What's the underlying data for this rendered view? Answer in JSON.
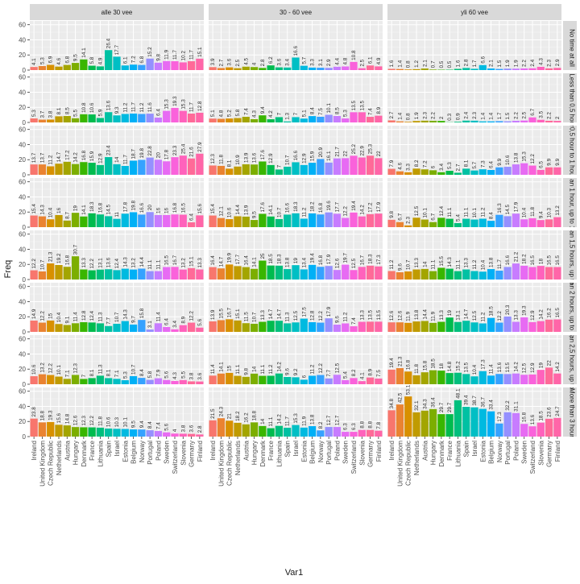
{
  "chart_data": {
    "type": "bar",
    "xlabel": "Var1",
    "ylabel": "Freq",
    "ylim": [
      0,
      65
    ],
    "yticks": [
      0,
      20,
      40,
      60
    ],
    "ytick_labels": [
      "0",
      "20",
      "40",
      "60"
    ],
    "grid": true,
    "legend": "none",
    "facet_cols": [
      "alle 30 vee",
      "30 - 60 vee",
      "yli 60 vee"
    ],
    "facet_rows": [
      "No time at all",
      "Less than 0,5 hour",
      "0,5 hour to 1 hour",
      "an 1 hour, up to 1,",
      "an 1,5 hours, up to",
      "an 2 hours, up to 2,",
      "an 2,5 hours, up to",
      "More than 3 hours"
    ],
    "categories": [
      "Ireland",
      "United Kingdom",
      "Czech Republic",
      "Netherlands",
      "Austria",
      "Hungary",
      "Denmark",
      "France",
      "Lithuania",
      "Spain",
      "Israel",
      "Estonia",
      "Belgium",
      "Norway",
      "Portugal",
      "Poland",
      "Sweden",
      "Switzerland",
      "Slovenia",
      "Germany",
      "Finland"
    ],
    "colors": [
      "#F8766D",
      "#EA8331",
      "#D89000",
      "#C09B00",
      "#A3A500",
      "#7CAE00",
      "#39B600",
      "#00BB4E",
      "#00BF7D",
      "#00C1A3",
      "#00BFC4",
      "#00BAE0",
      "#00B0F6",
      "#35A2FF",
      "#9590FF",
      "#C77CFF",
      "#E76BF3",
      "#FA62DB",
      "#FF62BC",
      "#FF6A98",
      "#FF66A8"
    ],
    "values": [
      [
        [
          4.1,
          5.3,
          6.9,
          4.6,
          6.8,
          9.5,
          14.1,
          5.8,
          4.9,
          26.4,
          17.7,
          6.1,
          7.2,
          6.8,
          15.2,
          9.8,
          11.9,
          11.7,
          10.2,
          11.7,
          15.1
        ],
        [
          3.9,
          2.7,
          3.6,
          2.5,
          4.5,
          4,
          2.8,
          6.2,
          3.6,
          3.4,
          16.6,
          5.7,
          3.3,
          3.1,
          2.9,
          4.4,
          4.8,
          10.8,
          2.5,
          6.1,
          4.9
        ],
        [
          1.6,
          1.4,
          0.8,
          1.2,
          2.1,
          0.7,
          0.5,
          0.5,
          1.6,
          2.8,
          1.7,
          6.6,
          2.1,
          1.5,
          1.9,
          1.9,
          2.2,
          2.4,
          4.3,
          2.3,
          2.9
        ]
      ],
      [
        [
          5.3,
          3.7,
          3.8,
          8.1,
          8.5,
          5.5,
          10.8,
          10.6,
          5.9,
          13.6,
          9.3,
          11.2,
          11.7,
          11.2,
          11.6,
          6.4,
          15.3,
          19.3,
          15.3,
          11.7,
          12.8
        ],
        [
          5.1,
          4.8,
          5.2,
          5.8,
          7.4,
          4.3,
          9.4,
          4.2,
          7,
          1.3,
          7,
          5.1,
          8.4,
          7.5,
          10.1,
          8.5,
          5.3,
          13.5,
          13.5,
          7.4,
          8.9
        ],
        [
          2.7,
          1.4,
          0.8,
          1.9,
          2.3,
          2.2,
          2,
          0.3,
          0.9,
          2.4,
          2.3,
          1.4,
          1.4,
          1.7,
          1.5,
          2.2,
          2.5,
          6.7,
          3.5,
          2.2,
          2
        ]
      ],
      [
        [
          13.7,
          13.7,
          11.2,
          14.7,
          17.2,
          14.2,
          16.8,
          15.9,
          12.9,
          23.4,
          14,
          11.7,
          18.7,
          19.8,
          22.8,
          20,
          17.8,
          23.3,
          25.4,
          21.6,
          27.9
        ],
        [
          12.3,
          11.8,
          8.1,
          10.9,
          13.9,
          13.6,
          17.6,
          12.9,
          7,
          10.7,
          16.6,
          12.9,
          15.9,
          20.9,
          16.1,
          21.7,
          22,
          25.2,
          22.9,
          25.3,
          22
        ],
        [
          7.9,
          4.6,
          3.3,
          8.2,
          7.2,
          6,
          3.4,
          5.3,
          2.7,
          8.1,
          5.7,
          7.3,
          6.4,
          9.9,
          10.6,
          13.8,
          15.3,
          12.2,
          6.5,
          9.9,
          9.9
        ]
      ],
      [
        [
          15.4,
          14.3,
          10.4,
          16,
          8.7,
          19,
          14.1,
          18.3,
          16.8,
          14.5,
          11,
          17.8,
          19.8,
          16.6,
          20,
          16,
          16,
          16.8,
          16.5,
          6.4,
          15.6
        ],
        [
          15.4,
          12.1,
          10.6,
          14.4,
          13.9,
          9.5,
          17.6,
          14.1,
          10.7,
          16.6,
          18.3,
          11.2,
          18.2,
          16.8,
          19.6,
          17.7,
          12.2,
          19.4,
          14.2,
          17.2,
          17.9
        ],
        [
          9.8,
          6.7,
          2.3,
          12.5,
          10.1,
          6.7,
          12.4,
          11.1,
          5.4,
          11.1,
          10.1,
          11.2,
          8.4,
          16.3,
          14.5,
          17.9,
          10.4,
          11.8,
          9.4,
          10.3,
          13.2
        ]
      ],
      [
        [
          12.2,
          10.7,
          21.3,
          19.2,
          16.8,
          30.7,
          13.3,
          12.2,
          13.1,
          13.6,
          12.4,
          14.3,
          13.2,
          14.4,
          11.1,
          11.1,
          16.5,
          16.7,
          13.2,
          15.1,
          13.3
        ],
        [
          16.4,
          14.7,
          19.9,
          17.7,
          16.4,
          14.1,
          25,
          18.5,
          18.3,
          13.8,
          19,
          13.4,
          19.4,
          16.8,
          17.9,
          12.6,
          19.7,
          12.5,
          16.7,
          18.3,
          17.3
        ],
        [
          11.2,
          9.6,
          10.7,
          13.3,
          14,
          11.1,
          15.5,
          14.3,
          11.1,
          13.3,
          11.2,
          10.4,
          13.8,
          11.7,
          16.6,
          21.2,
          18.2,
          16.5,
          18,
          16.5,
          16.5
        ]
      ],
      [
        [
          14.9,
          12.2,
          15,
          10.4,
          9.1,
          11.4,
          12.8,
          12.4,
          11.3,
          7.7,
          10.7,
          14.3,
          9.7,
          15.8,
          3.1,
          11.4,
          6.4,
          3.4,
          8.9,
          12.2,
          5.6
        ],
        [
          13.9,
          15.5,
          16.7,
          15.1,
          11.5,
          10.7,
          13.3,
          14.7,
          14.7,
          11.3,
          12.5,
          17.5,
          12.8,
          12.2,
          17.9,
          9.6,
          11.2,
          7.4,
          13.3,
          13.5,
          13.5
        ],
        [
          12.6,
          12.6,
          11.9,
          13.8,
          14.4,
          11.9,
          13.3,
          19,
          13.1,
          14.7,
          12.5,
          11.2,
          18.5,
          12.2,
          20.3,
          13.3,
          19.3,
          12.9,
          14.2,
          16.2,
          16.5
        ]
      ],
      [
        [
          10.6,
          13.2,
          12.2,
          10.1,
          7.1,
          12.3,
          7,
          8.1,
          11.3,
          8.1,
          7.1,
          5.3,
          10.7,
          8.4,
          5.8,
          7.9,
          5.6,
          4.3,
          5.5,
          3.8,
          3.6
        ],
        [
          11.4,
          14.1,
          15,
          11.1,
          9.8,
          14,
          11.1,
          11.2,
          14.2,
          9.6,
          9.2,
          6,
          11.2,
          12.2,
          7.7,
          12.5,
          5.4,
          8.2,
          4.1,
          8.9,
          7.5
        ],
        [
          19.4,
          21.3,
          16.8,
          11.8,
          15.8,
          18.5,
          18,
          14.8,
          15.2,
          13.5,
          10.4,
          17.3,
          11.4,
          13.6,
          13.5,
          14.2,
          12.5,
          12.9,
          19,
          22,
          14.2
        ]
      ],
      [
        [
          23.8,
          18.8,
          19.3,
          15.6,
          14.8,
          12.6,
          12.3,
          12.2,
          11.8,
          10.6,
          10.3,
          10.1,
          9.5,
          9.4,
          8.4,
          7.4,
          5.6,
          4,
          3.8,
          3.6,
          2.8
        ],
        [
          21.5,
          24.3,
          21,
          18.2,
          16.2,
          18.8,
          14,
          11.1,
          14.2,
          11.7,
          15.3,
          11.9,
          13.8,
          8.2,
          12.7,
          12.7,
          6.3,
          6.3,
          8.8,
          8.8,
          7.8
        ],
        [
          34.8,
          42.5,
          53.1,
          32.1,
          34.3,
          36.4,
          29.7,
          29.7,
          48.1,
          39.4,
          38.7,
          36.7,
          33.4,
          17.3,
          32.2,
          31.1,
          16.8,
          13.6,
          18.5,
          23.6,
          24.7
        ]
      ]
    ]
  }
}
